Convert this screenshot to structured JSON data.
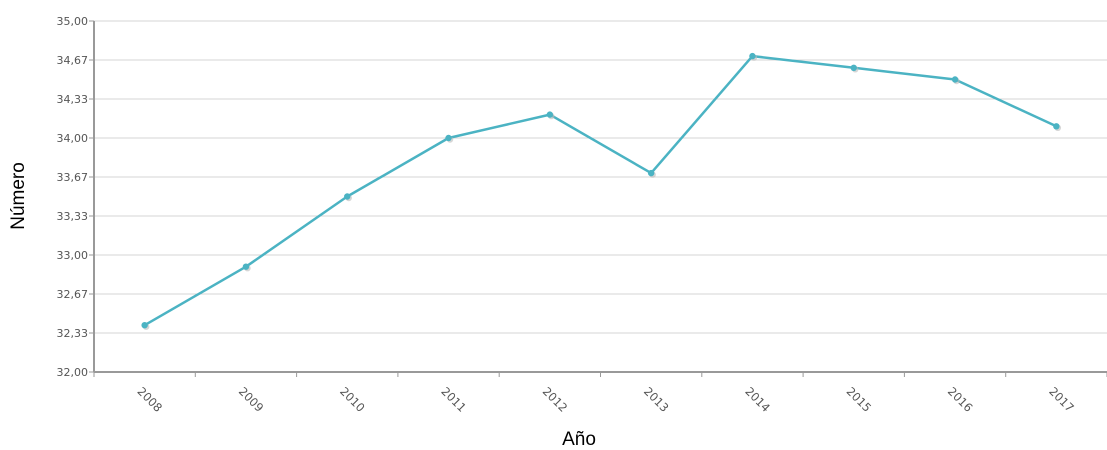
{
  "chart_data": {
    "type": "line",
    "title": "",
    "xlabel": "Año",
    "ylabel": "Número",
    "x": [
      "2008",
      "2009",
      "2010",
      "2011",
      "2012",
      "2013",
      "2014",
      "2015",
      "2016",
      "2017"
    ],
    "series": [
      {
        "values": [
          32.4,
          32.9,
          33.5,
          34.0,
          34.2,
          33.7,
          34.7,
          34.6,
          34.5,
          34.1
        ]
      }
    ],
    "ylim": [
      32.0,
      35.0
    ],
    "y_ticks": [
      "32,00",
      "32,33",
      "32,67",
      "33,00",
      "33,33",
      "33,67",
      "34,00",
      "34,33",
      "34,67",
      "35,00"
    ],
    "grid": true,
    "colors": {
      "line": "#4bb3c3",
      "grid": "#d4d4d4",
      "axis": "#999999"
    }
  }
}
